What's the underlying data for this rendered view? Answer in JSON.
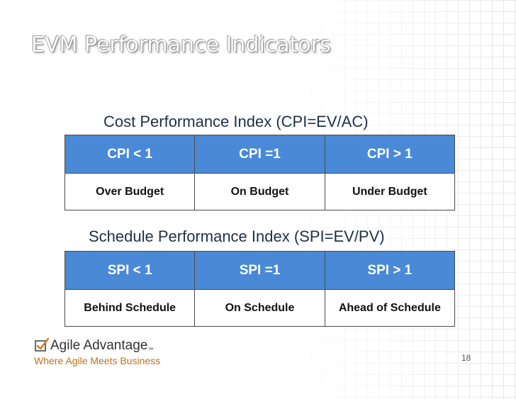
{
  "slide": {
    "title": "EVM Performance Indicators",
    "page_number": "18"
  },
  "cpi": {
    "heading": "Cost Performance Index (CPI=EV/AC)",
    "headers": [
      "CPI < 1",
      "CPI =1",
      "CPI > 1"
    ],
    "values": [
      "Over Budget",
      "On Budget",
      "Under Budget"
    ]
  },
  "spi": {
    "heading": "Schedule Performance Index (SPI=EV/PV)",
    "headers": [
      "SPI < 1",
      "SPI =1",
      "SPI > 1"
    ],
    "values": [
      "Behind Schedule",
      "On Schedule",
      "Ahead of Schedule"
    ]
  },
  "logo": {
    "name": "Agile Advantage",
    "trademark": "™",
    "tagline": "Where Agile Meets Business",
    "icon": "checkbox-icon"
  },
  "colors": {
    "header_fill": "#4a89d5",
    "tagline": "#c0701c",
    "heading_text": "#1e3047"
  }
}
